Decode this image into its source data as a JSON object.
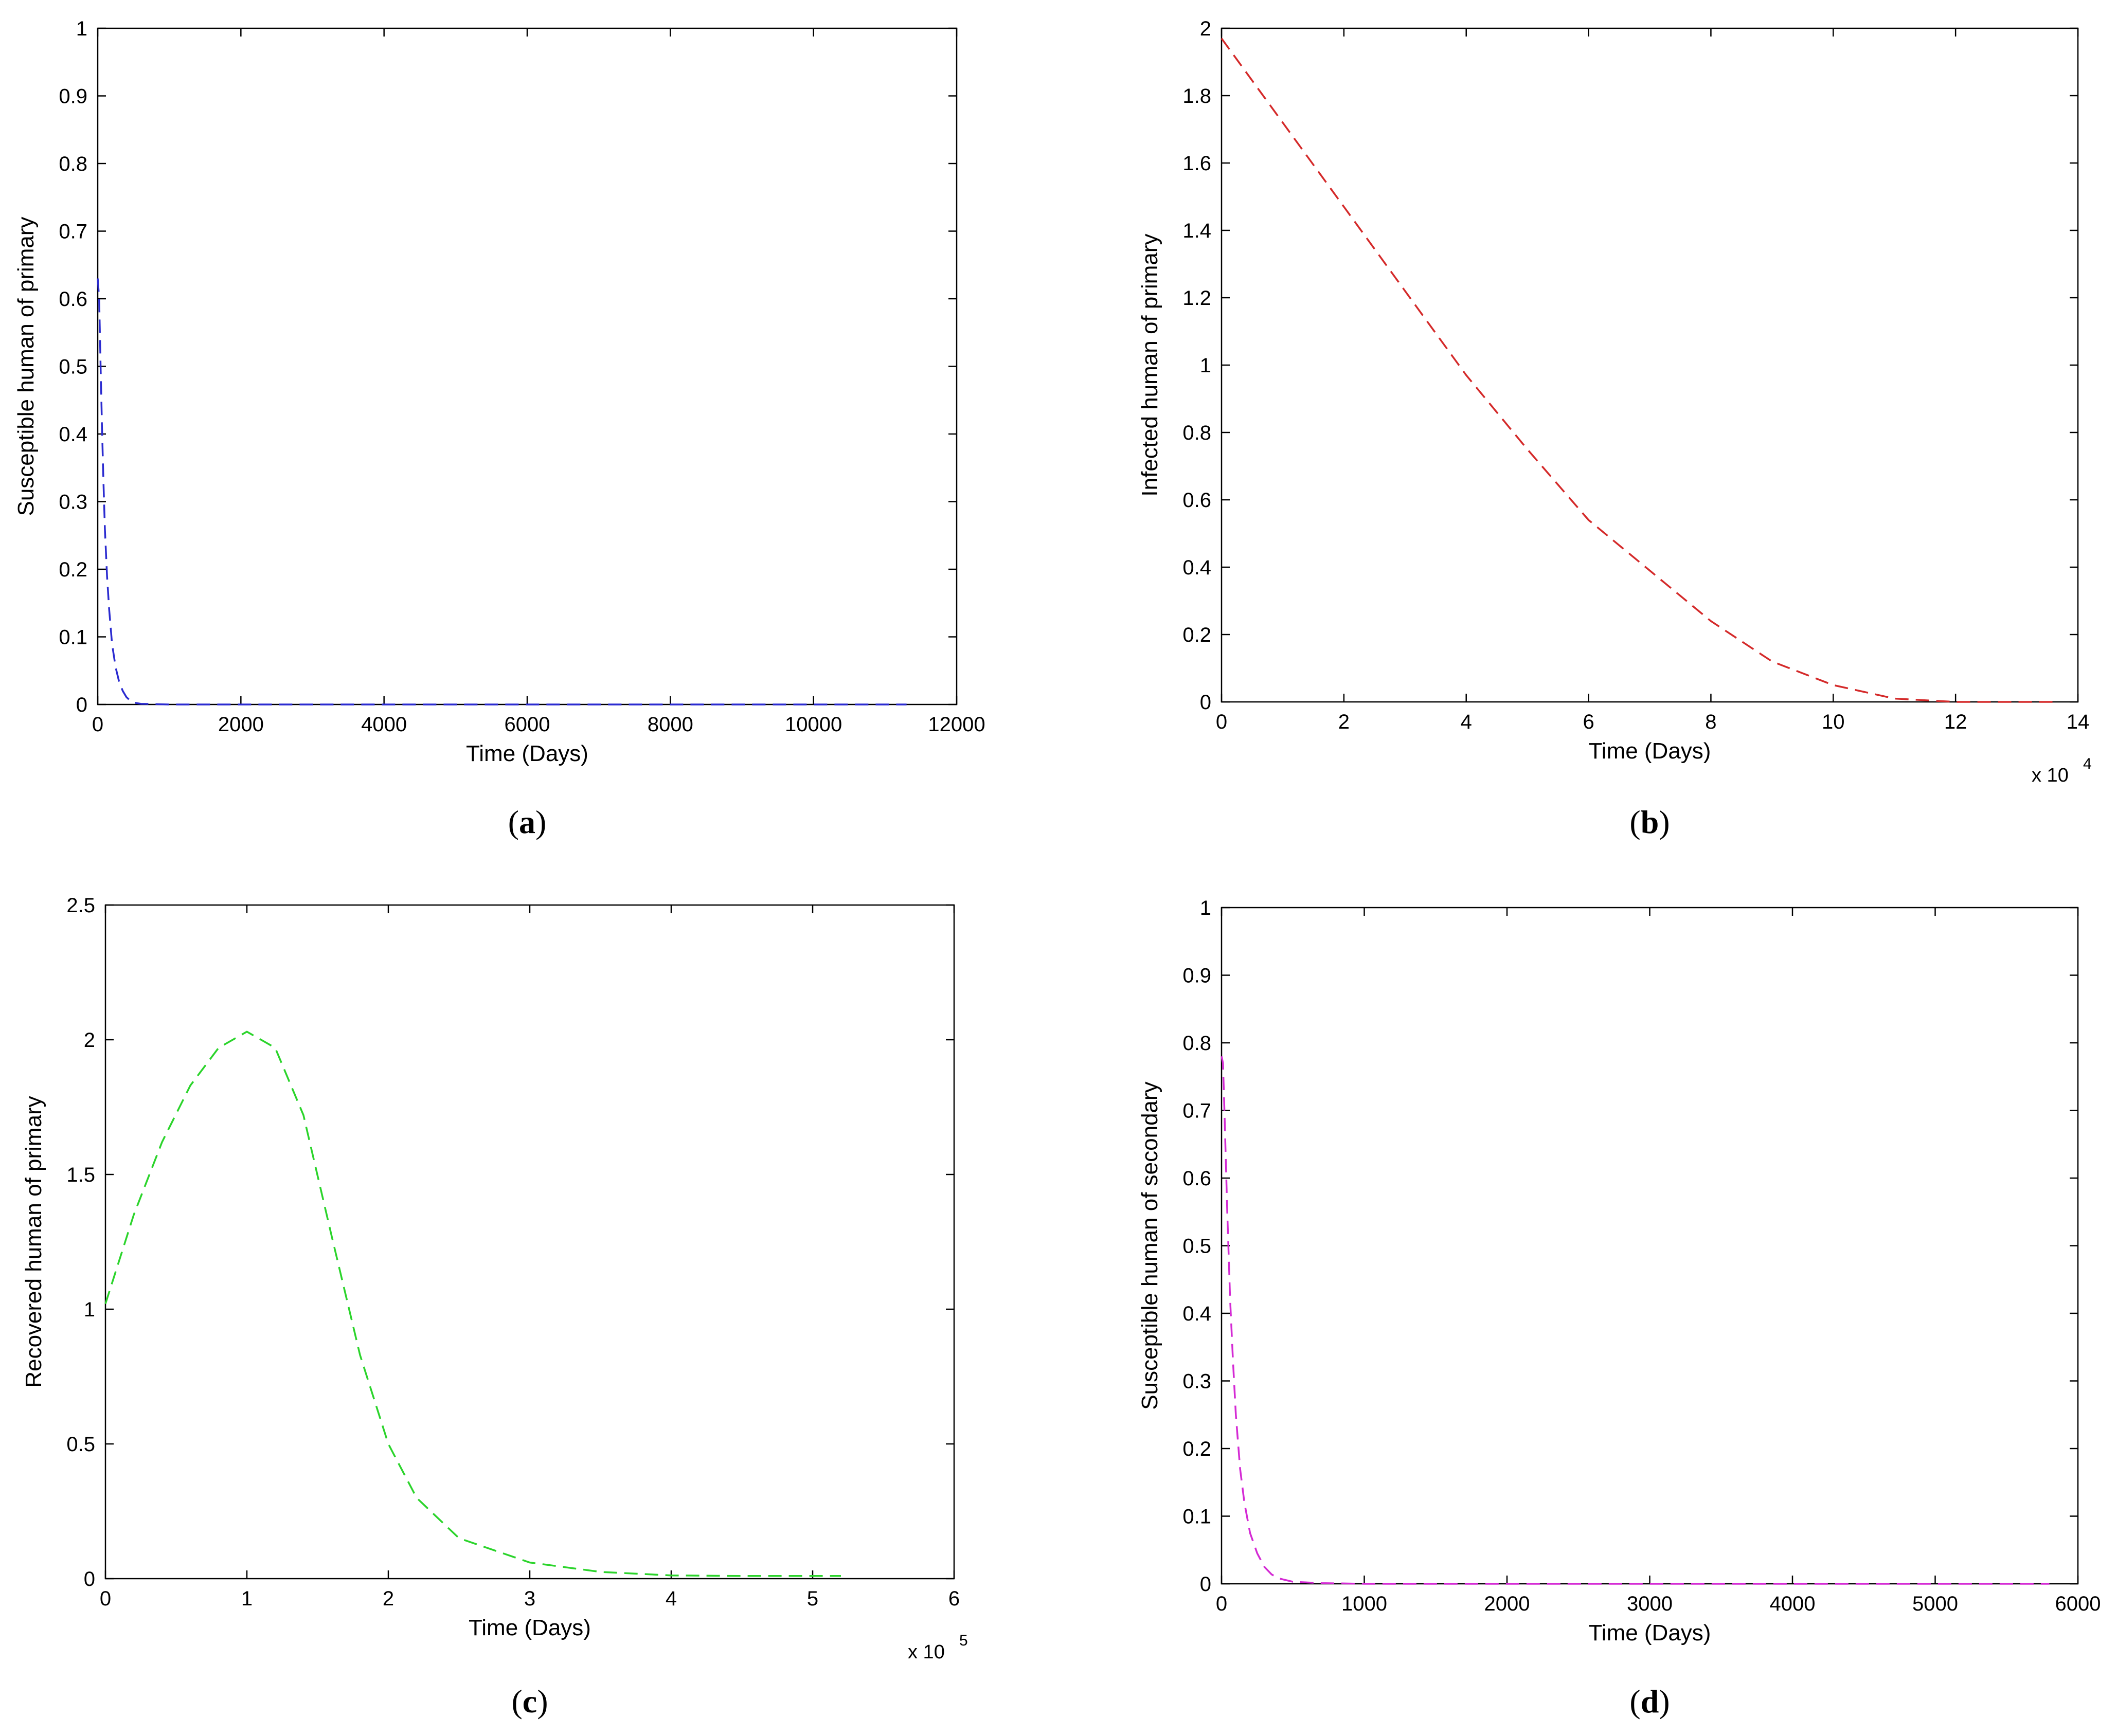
{
  "chart_data": [
    {
      "type": "line",
      "caption": "(a)",
      "xlabel": "Time (Days)",
      "ylabel": "Susceptible human of primary",
      "xlim": [
        0,
        12000
      ],
      "ylim": [
        0,
        1
      ],
      "xticks": [
        0,
        2000,
        4000,
        6000,
        8000,
        10000,
        12000
      ],
      "yticks": [
        0,
        0.1,
        0.2,
        0.3,
        0.4,
        0.5,
        0.6,
        0.7,
        0.8,
        0.9,
        1
      ],
      "xtick_labels": [
        "0",
        "2000",
        "4000",
        "6000",
        "8000",
        "10000",
        "12000"
      ],
      "ytick_labels": [
        "0",
        "0.1",
        "0.2",
        "0.3",
        "0.4",
        "0.5",
        "0.6",
        "0.7",
        "0.8",
        "0.9",
        "1"
      ],
      "x_exponent": "",
      "color": "#2b2bd0",
      "grid": false,
      "series": [
        {
          "x": [
            0,
            20,
            40,
            60,
            80,
            100,
            130,
            160,
            200,
            250,
            300,
            350,
            400,
            450,
            500,
            600,
            1000,
            2000,
            4000,
            6000,
            8000,
            10000,
            11300
          ],
          "y": [
            0.63,
            0.6,
            0.5,
            0.41,
            0.33,
            0.26,
            0.19,
            0.14,
            0.09,
            0.055,
            0.033,
            0.02,
            0.011,
            0.006,
            0.003,
            0.001,
            0,
            0,
            0,
            0,
            0,
            0,
            0
          ]
        }
      ]
    },
    {
      "type": "line",
      "caption": "(b)",
      "xlabel": "Time (Days)",
      "ylabel": "Infected human of primary",
      "xlim": [
        0,
        14
      ],
      "ylim": [
        0,
        2
      ],
      "xticks": [
        0,
        2,
        4,
        6,
        8,
        10,
        12,
        14
      ],
      "yticks": [
        0,
        0.2,
        0.4,
        0.6,
        0.8,
        1,
        1.2,
        1.4,
        1.6,
        1.8,
        2
      ],
      "xtick_labels": [
        "0",
        "2",
        "4",
        "6",
        "8",
        "10",
        "12",
        "14"
      ],
      "ytick_labels": [
        "0",
        "0.2",
        "0.4",
        "0.6",
        "0.8",
        "1",
        "1.2",
        "1.4",
        "1.6",
        "1.8",
        "2"
      ],
      "x_exponent": "x 10",
      "x_exponent_power": "4",
      "color": "#d42a2a",
      "grid": false,
      "series": [
        {
          "x": [
            0,
            1,
            2,
            3,
            4,
            5,
            6,
            7,
            8,
            9,
            10,
            11,
            12,
            13,
            13.6
          ],
          "y": [
            1.97,
            1.72,
            1.47,
            1.22,
            0.97,
            0.75,
            0.54,
            0.39,
            0.24,
            0.12,
            0.05,
            0.01,
            0.0,
            0.0,
            0.0
          ]
        }
      ]
    },
    {
      "type": "line",
      "caption": "(c)",
      "xlabel": "Time (Days)",
      "ylabel": "Recovered human of primary",
      "xlim": [
        0,
        6
      ],
      "ylim": [
        0,
        2.5
      ],
      "xticks": [
        0,
        1,
        2,
        3,
        4,
        5,
        6
      ],
      "yticks": [
        0,
        0.5,
        1,
        1.5,
        2,
        2.5
      ],
      "xtick_labels": [
        "0",
        "1",
        "2",
        "3",
        "4",
        "5",
        "6"
      ],
      "ytick_labels": [
        "0",
        "0.5",
        "1",
        "1.5",
        "2",
        "2.5"
      ],
      "x_exponent": "x 10",
      "x_exponent_power": "5",
      "color": "#2bd42b",
      "grid": false,
      "series": [
        {
          "x": [
            0,
            0.2,
            0.4,
            0.6,
            0.8,
            1.0,
            1.2,
            1.4,
            1.6,
            1.8,
            2.0,
            2.2,
            2.5,
            3.0,
            3.5,
            4.0,
            4.5,
            5.0,
            5.2
          ],
          "y": [
            1.02,
            1.35,
            1.62,
            1.83,
            1.97,
            2.03,
            1.97,
            1.72,
            1.27,
            0.83,
            0.5,
            0.3,
            0.15,
            0.06,
            0.025,
            0.012,
            0.01,
            0.01,
            0.01
          ]
        }
      ]
    },
    {
      "type": "line",
      "caption": "(d)",
      "xlabel": "Time (Days)",
      "ylabel": "Susceptible human of secondary",
      "xlim": [
        0,
        6000
      ],
      "ylim": [
        0,
        1
      ],
      "xticks": [
        0,
        1000,
        2000,
        3000,
        4000,
        5000,
        6000
      ],
      "yticks": [
        0,
        0.1,
        0.2,
        0.3,
        0.4,
        0.5,
        0.6,
        0.7,
        0.8,
        0.9,
        1
      ],
      "xtick_labels": [
        "0",
        "1000",
        "2000",
        "3000",
        "4000",
        "5000",
        "6000"
      ],
      "ytick_labels": [
        "0",
        "0.1",
        "0.2",
        "0.3",
        "0.4",
        "0.5",
        "0.6",
        "0.7",
        "0.8",
        "0.9",
        "1"
      ],
      "x_exponent": "",
      "color": "#d42ad4",
      "grid": false,
      "series": [
        {
          "x": [
            0,
            10,
            20,
            40,
            60,
            80,
            100,
            130,
            160,
            200,
            250,
            300,
            350,
            400,
            500,
            700,
            1000,
            2000,
            3000,
            4000,
            5000,
            5800
          ],
          "y": [
            0.78,
            0.77,
            0.7,
            0.55,
            0.42,
            0.33,
            0.25,
            0.17,
            0.12,
            0.075,
            0.045,
            0.025,
            0.014,
            0.008,
            0.003,
            0.001,
            0,
            0,
            0,
            0,
            0,
            0
          ]
        }
      ]
    }
  ]
}
